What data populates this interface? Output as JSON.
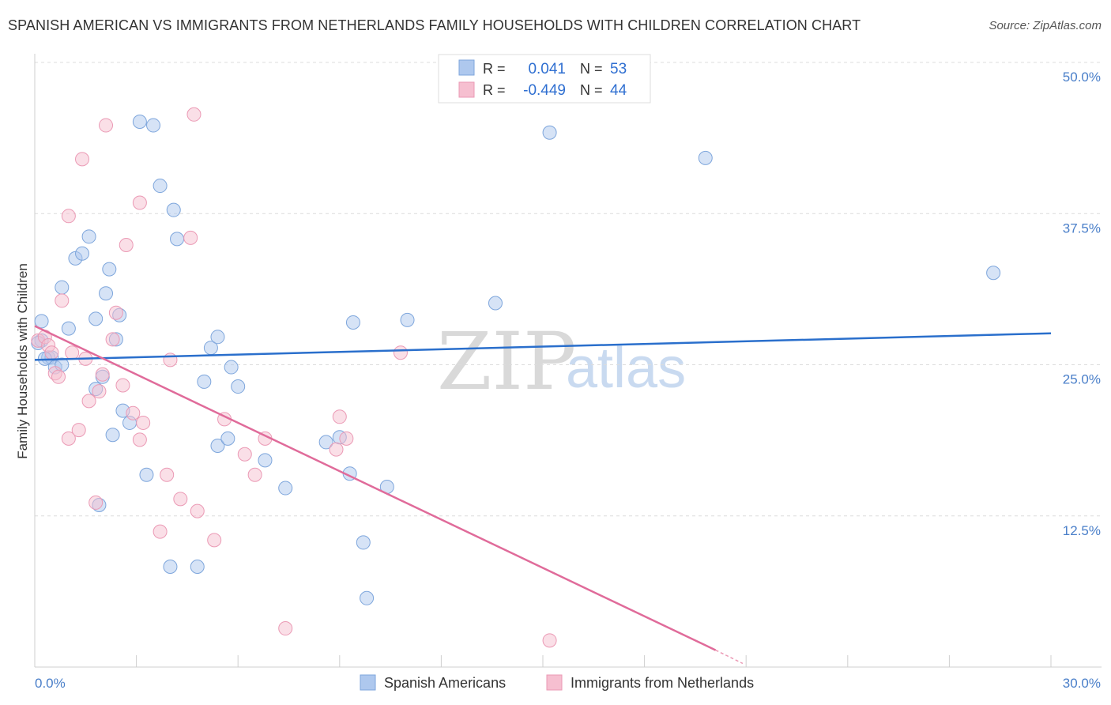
{
  "header": {
    "title": "SPANISH AMERICAN VS IMMIGRANTS FROM NETHERLANDS FAMILY HOUSEHOLDS WITH CHILDREN CORRELATION CHART",
    "source": "Source: ZipAtlas.com"
  },
  "watermark": {
    "zip": "ZIP",
    "atlas": "atlas"
  },
  "legend": {
    "r_label": "R =",
    "n_label": "N =",
    "series": [
      {
        "r": "0.041",
        "n": "53"
      },
      {
        "r": "-0.449",
        "n": "44"
      }
    ]
  },
  "colors": {
    "blue_fill": "#aec8ee",
    "blue_stroke": "#7ea6dc",
    "blue_line": "#2a6fcc",
    "pink_fill": "#f6bfd0",
    "pink_stroke": "#eb9ab5",
    "pink_line": "#e06b9a",
    "grid": "#dcdcdc",
    "tick_text": "#4a7fc9"
  },
  "chart_data": {
    "type": "scatter",
    "title": "SPANISH AMERICAN VS IMMIGRANTS FROM NETHERLANDS FAMILY HOUSEHOLDS WITH CHILDREN CORRELATION CHART",
    "xlabel": "",
    "ylabel": "Family Households with Children",
    "xlim": [
      0,
      30
    ],
    "ylim": [
      0,
      50
    ],
    "x_tick_labels": [
      "0.0%",
      "30.0%"
    ],
    "y_ticks": [
      {
        "value": 12.5,
        "label": "12.5%"
      },
      {
        "value": 25,
        "label": "25.0%"
      },
      {
        "value": 37.5,
        "label": "37.5%"
      },
      {
        "value": 50,
        "label": "50.0%"
      }
    ],
    "grid": "horizontal dashed",
    "legend_position": "top-center",
    "series": [
      {
        "name": "Spanish Americans",
        "r": 0.041,
        "n": 53,
        "trend": {
          "x": [
            0,
            30
          ],
          "y": [
            25.4,
            27.6
          ]
        },
        "points": [
          [
            0.2,
            28.6
          ],
          [
            0.2,
            27.0
          ],
          [
            0.4,
            25.6
          ],
          [
            0.5,
            25.6
          ],
          [
            0.6,
            24.8
          ],
          [
            0.8,
            25.0
          ],
          [
            1.0,
            28.0
          ],
          [
            1.2,
            33.8
          ],
          [
            0.8,
            31.4
          ],
          [
            1.4,
            34.2
          ],
          [
            1.6,
            35.6
          ],
          [
            1.8,
            28.8
          ],
          [
            2.1,
            30.9
          ],
          [
            2.2,
            32.9
          ],
          [
            2.5,
            29.1
          ],
          [
            2.4,
            27.1
          ],
          [
            1.8,
            23.0
          ],
          [
            2.0,
            24.0
          ],
          [
            2.6,
            21.2
          ],
          [
            2.8,
            20.2
          ],
          [
            2.3,
            19.2
          ],
          [
            1.9,
            13.4
          ],
          [
            3.1,
            45.1
          ],
          [
            3.5,
            44.8
          ],
          [
            3.7,
            39.8
          ],
          [
            4.1,
            37.8
          ],
          [
            4.2,
            35.4
          ],
          [
            3.3,
            15.9
          ],
          [
            4.0,
            8.3
          ],
          [
            4.8,
            8.3
          ],
          [
            5.0,
            23.6
          ],
          [
            5.2,
            26.4
          ],
          [
            5.4,
            27.3
          ],
          [
            5.8,
            24.8
          ],
          [
            6.0,
            23.2
          ],
          [
            5.4,
            18.3
          ],
          [
            5.7,
            18.9
          ],
          [
            6.8,
            17.1
          ],
          [
            7.4,
            14.8
          ],
          [
            8.6,
            18.6
          ],
          [
            9.0,
            19.0
          ],
          [
            9.4,
            28.5
          ],
          [
            9.3,
            16.0
          ],
          [
            9.7,
            10.3
          ],
          [
            9.8,
            5.7
          ],
          [
            10.4,
            14.9
          ],
          [
            11.0,
            28.7
          ],
          [
            13.6,
            30.1
          ],
          [
            15.2,
            44.2
          ],
          [
            19.8,
            42.1
          ],
          [
            28.3,
            32.6
          ],
          [
            0.1,
            26.8
          ],
          [
            0.3,
            25.5
          ]
        ]
      },
      {
        "name": "Immigrants from Netherlands",
        "r": -0.449,
        "n": 44,
        "trend": {
          "x": [
            0,
            20.1
          ],
          "y": [
            28.2,
            1.4
          ]
        },
        "trend_dashed_extension": {
          "x": [
            20.1,
            20.9
          ],
          "y": [
            1.4,
            0.3
          ]
        },
        "points": [
          [
            0.1,
            27.0
          ],
          [
            0.3,
            27.3
          ],
          [
            0.4,
            26.6
          ],
          [
            0.5,
            26.0
          ],
          [
            0.6,
            24.3
          ],
          [
            0.7,
            24.0
          ],
          [
            0.8,
            30.3
          ],
          [
            1.0,
            37.3
          ],
          [
            1.1,
            26.0
          ],
          [
            1.3,
            19.6
          ],
          [
            1.5,
            25.5
          ],
          [
            1.6,
            22.0
          ],
          [
            1.8,
            13.6
          ],
          [
            1.9,
            22.8
          ],
          [
            2.0,
            24.2
          ],
          [
            2.1,
            44.8
          ],
          [
            1.4,
            42.0
          ],
          [
            2.3,
            27.1
          ],
          [
            2.4,
            29.3
          ],
          [
            2.6,
            23.3
          ],
          [
            2.7,
            34.9
          ],
          [
            2.9,
            21.0
          ],
          [
            3.1,
            38.4
          ],
          [
            3.2,
            20.2
          ],
          [
            3.1,
            18.8
          ],
          [
            3.7,
            11.2
          ],
          [
            3.9,
            15.9
          ],
          [
            4.0,
            25.4
          ],
          [
            4.3,
            13.9
          ],
          [
            4.6,
            35.5
          ],
          [
            4.7,
            45.7
          ],
          [
            4.8,
            12.9
          ],
          [
            5.3,
            10.5
          ],
          [
            5.6,
            20.5
          ],
          [
            6.2,
            17.6
          ],
          [
            6.5,
            15.9
          ],
          [
            6.8,
            18.9
          ],
          [
            7.4,
            3.2
          ],
          [
            8.9,
            18.0
          ],
          [
            9.0,
            20.7
          ],
          [
            9.2,
            18.9
          ],
          [
            10.8,
            26.0
          ],
          [
            15.2,
            2.2
          ],
          [
            1.0,
            18.9
          ]
        ]
      }
    ]
  },
  "bottom_legend": {
    "items": [
      "Spanish Americans",
      "Immigrants from Netherlands"
    ]
  }
}
